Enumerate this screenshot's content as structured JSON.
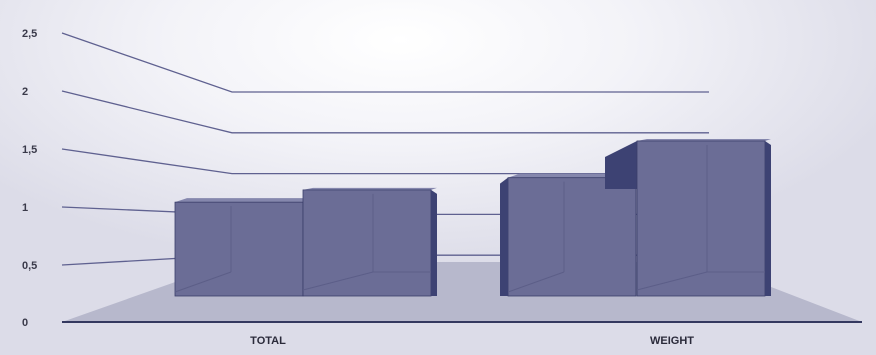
{
  "chart_data": {
    "type": "bar",
    "three_d": true,
    "categories": [
      "TOTAL",
      "WEIGHT"
    ],
    "series": [
      {
        "values": [
          1.15,
          1.45
        ]
      },
      {
        "values": [
          1.3,
          1.9
        ]
      }
    ],
    "ylim": [
      0,
      2.5
    ],
    "yticks": [
      "0",
      "0,5",
      "1",
      "1,5",
      "2",
      "2,5"
    ],
    "grid": true,
    "legend": "none",
    "title": "",
    "xlabel": "",
    "ylabel": ""
  },
  "colors": {
    "bar_front": "#6b6d96",
    "bar_side": "#3d4273",
    "bar_top": "#8587ad",
    "floor": "#b7b8cc",
    "floor_edge": "#34385f",
    "gridline": "#5f6190",
    "label": "#3a3a4a"
  }
}
